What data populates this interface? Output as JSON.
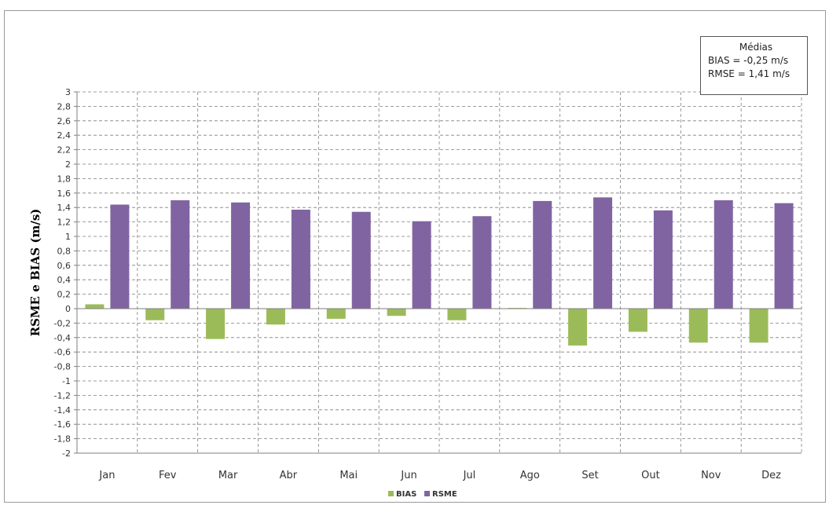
{
  "chart_data": {
    "type": "bar",
    "title": "",
    "xlabel": "",
    "ylabel": "RSME e BIAS (m/s)",
    "ylim": [
      -2,
      3
    ],
    "ytick_step": 0.2,
    "grid": true,
    "legend_position": "bottom",
    "categories": [
      "Jan",
      "Fev",
      "Mar",
      "Abr",
      "Mai",
      "Jun",
      "Jul",
      "Ago",
      "Set",
      "Out",
      "Nov",
      "Dez"
    ],
    "series": [
      {
        "name": "BIAS",
        "color": "#9bbb59",
        "values": [
          0.06,
          -0.16,
          -0.42,
          -0.22,
          -0.14,
          -0.1,
          -0.16,
          0.01,
          -0.51,
          -0.32,
          -0.47,
          -0.47
        ]
      },
      {
        "name": "RSME",
        "color": "#8064a2",
        "values": [
          1.44,
          1.5,
          1.47,
          1.37,
          1.34,
          1.21,
          1.28,
          1.49,
          1.54,
          1.36,
          1.5,
          1.46
        ]
      }
    ],
    "annotation": {
      "title": "Médias",
      "lines": [
        "BIAS = -0,25 m/s",
        "RMSE = 1,41 m/s"
      ]
    }
  }
}
